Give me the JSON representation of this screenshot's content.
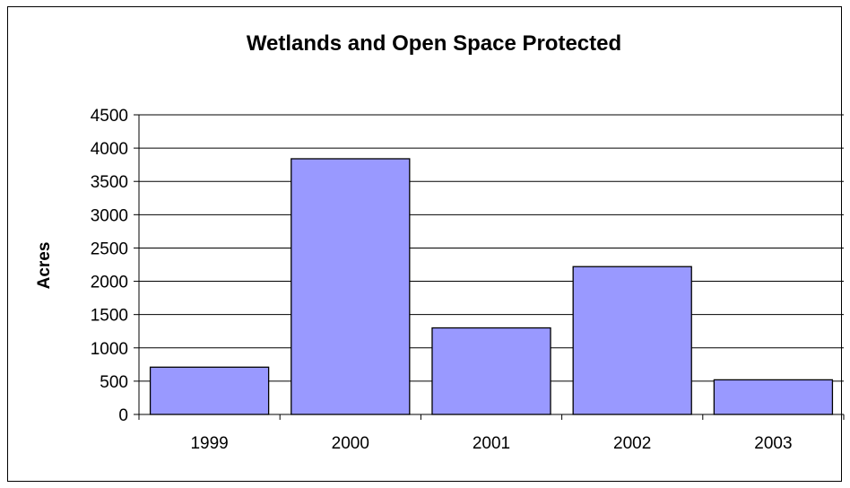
{
  "chart_data": {
    "type": "bar",
    "title": "Wetlands and Open Space Protected",
    "xlabel": "",
    "ylabel": "Acres",
    "categories": [
      "1999",
      "2000",
      "2001",
      "2002",
      "2003"
    ],
    "values": [
      710,
      3840,
      1300,
      2220,
      520
    ],
    "ylim": [
      0,
      4500
    ],
    "yticks": [
      0,
      500,
      1000,
      1500,
      2000,
      2500,
      3000,
      3500,
      4000,
      4500
    ],
    "grid": true,
    "legend": "none",
    "bar_color": "#9999ff",
    "bar_edge_color": "#000000"
  }
}
